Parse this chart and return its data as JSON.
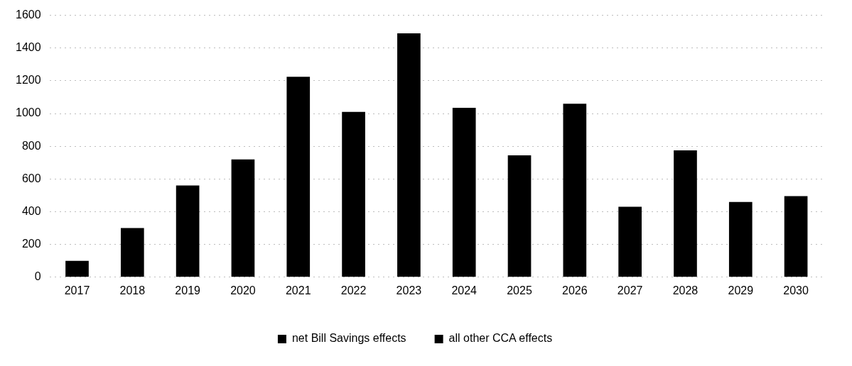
{
  "chart_data": {
    "type": "bar",
    "stacked": true,
    "categories": [
      "2017",
      "2018",
      "2019",
      "2020",
      "2021",
      "2022",
      "2023",
      "2024",
      "2025",
      "2026",
      "2027",
      "2028",
      "2029",
      "2030"
    ],
    "series": [
      {
        "name": "net Bill Savings effects",
        "color": "#000000",
        "values": [
          100,
          300,
          560,
          720,
          1225,
          1010,
          1490,
          1035,
          745,
          1060,
          430,
          775,
          460,
          495
        ]
      },
      {
        "name": "all other CCA effects",
        "color": "#000000",
        "values": [
          null,
          null,
          null,
          null,
          null,
          null,
          null,
          null,
          null,
          null,
          null,
          null,
          null,
          null
        ]
      }
    ],
    "ylim": [
      0,
      1600
    ],
    "yticks": [
      0,
      200,
      400,
      600,
      800,
      1000,
      1200,
      1400,
      1600
    ],
    "grid": "y",
    "legend": "bottom"
  }
}
